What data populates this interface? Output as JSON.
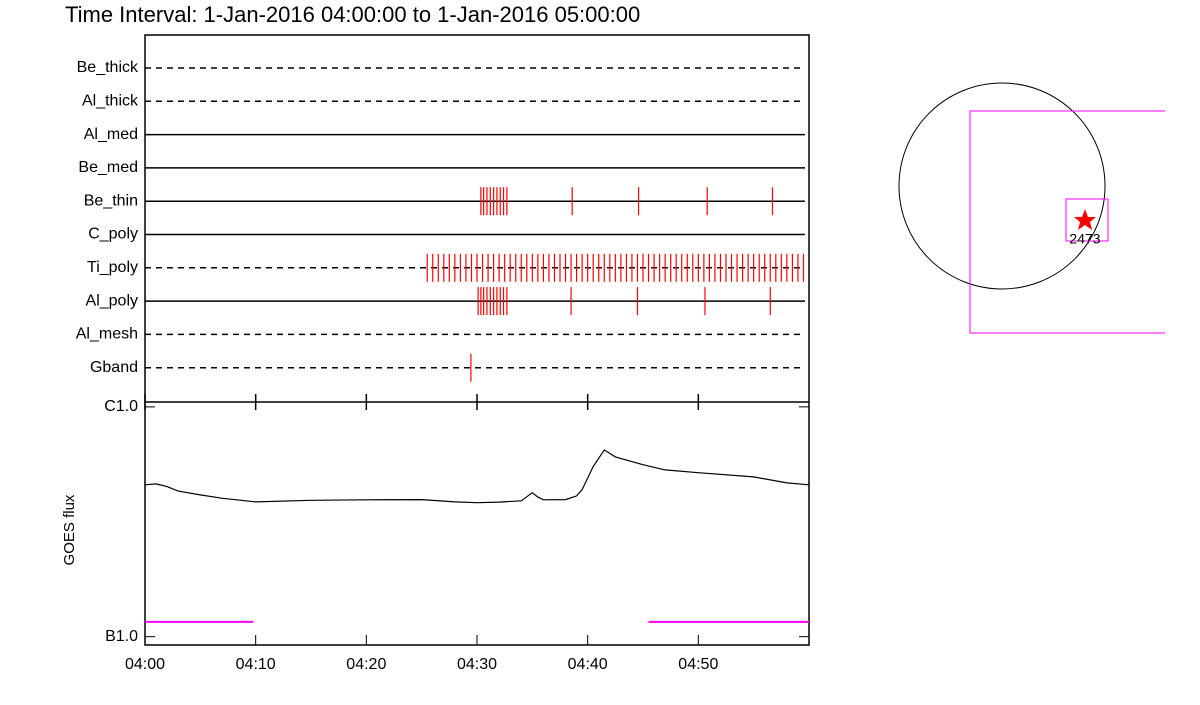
{
  "chart_data": {
    "type": "timeline",
    "title": "Time Interval:  1-Jan-2016 04:00:00 to  1-Jan-2016 05:00:00",
    "xlim": [
      0,
      60
    ],
    "xticks": [
      {
        "value": 0,
        "label": "04:00"
      },
      {
        "value": 10,
        "label": "04:10"
      },
      {
        "value": 20,
        "label": "04:20"
      },
      {
        "value": 30,
        "label": "04:30"
      },
      {
        "value": 40,
        "label": "04:40"
      },
      {
        "value": 50,
        "label": "04:50"
      }
    ],
    "event_color": "#ff0000",
    "filters": [
      {
        "name": "Be_thick",
        "style": "dashed",
        "events": []
      },
      {
        "name": "Al_thick",
        "style": "dashed",
        "events": []
      },
      {
        "name": "Al_med",
        "style": "solid",
        "events": []
      },
      {
        "name": "Be_med",
        "style": "solid",
        "events": []
      },
      {
        "name": "Be_thin",
        "style": "solid",
        "events": [
          30.35,
          30.6,
          30.9,
          31.2,
          31.5,
          31.8,
          32.1,
          32.4,
          32.7,
          38.6,
          44.6,
          50.8,
          56.7
        ]
      },
      {
        "name": "C_poly",
        "style": "solid",
        "events": []
      },
      {
        "name": "Ti_poly",
        "style": "dashed",
        "events": [
          25.5,
          26,
          26.5,
          27,
          27.5,
          28,
          28.5,
          29,
          29.5,
          30,
          30.5,
          31,
          31.5,
          32,
          32.5,
          33,
          33.5,
          34,
          34.5,
          35,
          35.5,
          36,
          36.5,
          37,
          37.5,
          38,
          38.5,
          39,
          39.5,
          40,
          40.5,
          41,
          41.5,
          42,
          42.5,
          43,
          43.5,
          44,
          44.5,
          45,
          45.5,
          46,
          46.5,
          47,
          47.5,
          48,
          48.5,
          49,
          49.5,
          50,
          50.5,
          51,
          51.5,
          52,
          52.5,
          53,
          53.5,
          54,
          54.5,
          55,
          55.5,
          56,
          56.5,
          57,
          57.5,
          58,
          58.5,
          59,
          59.5
        ]
      },
      {
        "name": "Al_poly",
        "style": "solid",
        "events": [
          30.1,
          30.35,
          30.6,
          30.9,
          31.2,
          31.5,
          31.8,
          32.1,
          32.4,
          32.7,
          38.5,
          44.5,
          50.6,
          56.5
        ]
      },
      {
        "name": "Al_mesh",
        "style": "dashed",
        "events": []
      },
      {
        "name": "Gband",
        "style": "dashed",
        "events": [
          29.45
        ]
      }
    ],
    "goes": {
      "ylabel": "GOES flux",
      "log": true,
      "ylim": [
        9.2e-08,
        1.05e-06
      ],
      "yticks": [
        {
          "value": 1e-07,
          "label": "B1.0"
        },
        {
          "value": 1e-06,
          "label": "C1.0"
        }
      ],
      "x": [
        0,
        1,
        2,
        3,
        5,
        7,
        10,
        15,
        20,
        25,
        28,
        30,
        32,
        34,
        35,
        35.5,
        36,
        38,
        39,
        39.5,
        40.5,
        41.5,
        42.5,
        45,
        47,
        50,
        55,
        58,
        60
      ],
      "values": [
        4.58e-07,
        4.62e-07,
        4.5e-07,
        4.3e-07,
        4.14e-07,
        4e-07,
        3.86e-07,
        3.92e-07,
        3.94e-07,
        3.95e-07,
        3.86e-07,
        3.83e-07,
        3.85e-07,
        3.9e-07,
        4.23e-07,
        4.05e-07,
        3.94e-07,
        3.95e-07,
        4.1e-07,
        4.36e-07,
        5.5e-07,
        6.5e-07,
        6.06e-07,
        5.6e-07,
        5.32e-07,
        5.17e-07,
        4.96e-07,
        4.67e-07,
        4.58e-07
      ],
      "color": "#000000",
      "interval_color": "#ff00ff",
      "interval_level": 1.16e-07,
      "intervals": [
        [
          0,
          9.8
        ],
        [
          45.5,
          60
        ]
      ]
    },
    "context_label": "2473"
  }
}
